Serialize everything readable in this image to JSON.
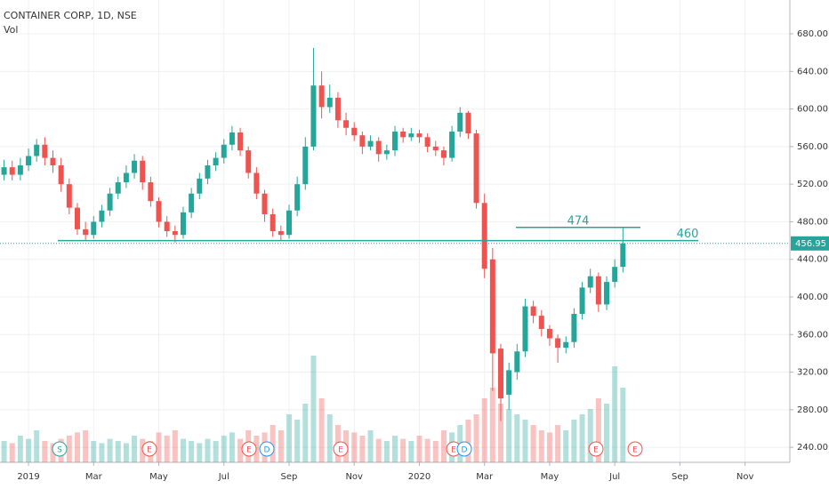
{
  "chart_data": {
    "type": "candlestick",
    "title": "CONTAINER CORP, 1D, NSE",
    "volume_label": "Vol",
    "categories": [
      null,
      null,
      null,
      "2019",
      null,
      null,
      null,
      null,
      null,
      null,
      null,
      "Mar",
      null,
      null,
      null,
      null,
      null,
      null,
      null,
      "May",
      null,
      null,
      null,
      null,
      null,
      null,
      null,
      "Jul",
      null,
      null,
      null,
      null,
      null,
      null,
      null,
      "Sep",
      null,
      null,
      null,
      null,
      null,
      null,
      null,
      "Nov",
      null,
      null,
      null,
      null,
      null,
      null,
      null,
      "2020",
      null,
      null,
      null,
      null,
      null,
      null,
      null,
      "Mar",
      null,
      null,
      null,
      null,
      null,
      null,
      null,
      "May",
      null,
      null,
      null,
      null,
      null,
      null,
      null,
      "Jul",
      null,
      null,
      null,
      null,
      null,
      null,
      null,
      "Sep",
      null,
      null,
      null,
      null,
      null,
      null,
      null,
      "Nov",
      null,
      null,
      null,
      null,
      null
    ],
    "open": [
      530,
      538,
      530,
      540,
      550,
      562,
      548,
      540,
      520,
      495,
      472,
      466,
      480,
      492,
      510,
      522,
      532,
      545,
      522,
      502,
      480,
      470,
      466,
      490,
      510,
      526,
      540,
      548,
      562,
      575,
      556,
      532,
      510,
      488,
      470,
      466,
      492,
      520,
      560,
      625,
      602,
      612,
      588,
      580,
      572,
      560,
      566,
      552,
      556,
      576,
      570,
      574,
      570,
      560,
      556,
      548,
      576,
      596,
      574,
      500,
      440,
      345,
      296,
      320,
      342,
      390,
      380,
      366,
      356,
      346,
      352,
      382,
      410,
      422,
      392,
      416,
      432,
      null,
      null,
      null,
      null,
      null,
      null,
      null,
      null,
      null,
      null,
      null,
      null,
      null,
      null,
      null,
      null,
      null,
      null,
      null,
      null
    ],
    "high": [
      546,
      545,
      548,
      558,
      568,
      570,
      556,
      548,
      526,
      500,
      480,
      486,
      498,
      516,
      528,
      540,
      552,
      550,
      528,
      506,
      486,
      476,
      496,
      516,
      532,
      546,
      554,
      568,
      582,
      580,
      560,
      538,
      514,
      494,
      476,
      498,
      528,
      570,
      665,
      640,
      626,
      618,
      596,
      586,
      576,
      572,
      570,
      562,
      582,
      580,
      580,
      578,
      574,
      566,
      560,
      582,
      602,
      598,
      578,
      510,
      452,
      350,
      330,
      350,
      398,
      396,
      386,
      370,
      360,
      358,
      388,
      416,
      430,
      426,
      422,
      440,
      474,
      null,
      null,
      null,
      null,
      null,
      null,
      null,
      null,
      null,
      null,
      null,
      null,
      null,
      null,
      null,
      null,
      null,
      null,
      null,
      null
    ],
    "low": [
      524,
      524,
      524,
      534,
      544,
      540,
      532,
      512,
      488,
      466,
      460,
      462,
      474,
      486,
      504,
      516,
      526,
      514,
      496,
      474,
      464,
      458,
      462,
      484,
      504,
      520,
      534,
      542,
      556,
      550,
      526,
      504,
      480,
      464,
      460,
      462,
      486,
      514,
      556,
      590,
      596,
      580,
      572,
      566,
      552,
      556,
      544,
      546,
      550,
      564,
      566,
      564,
      554,
      550,
      540,
      544,
      570,
      568,
      494,
      420,
      300,
      268,
      280,
      312,
      336,
      372,
      358,
      348,
      330,
      340,
      346,
      376,
      404,
      384,
      386,
      410,
      426,
      null,
      null,
      null,
      null,
      null,
      null,
      null,
      null,
      null,
      null,
      null,
      null,
      null,
      null,
      null,
      null,
      null,
      null,
      null,
      null
    ],
    "close": [
      538,
      530,
      540,
      550,
      562,
      548,
      540,
      520,
      495,
      472,
      466,
      480,
      492,
      510,
      522,
      532,
      545,
      522,
      502,
      480,
      470,
      466,
      490,
      510,
      526,
      540,
      548,
      562,
      575,
      556,
      532,
      510,
      488,
      470,
      466,
      492,
      520,
      560,
      625,
      602,
      612,
      588,
      580,
      572,
      560,
      566,
      552,
      556,
      576,
      570,
      574,
      570,
      560,
      556,
      548,
      576,
      596,
      574,
      500,
      430,
      340,
      292,
      322,
      342,
      390,
      380,
      366,
      356,
      346,
      352,
      382,
      410,
      422,
      392,
      416,
      432,
      456.95,
      null,
      null,
      null,
      null,
      null,
      null,
      null,
      null,
      null,
      null,
      null,
      null,
      null,
      null,
      null,
      null,
      null,
      null,
      null,
      null
    ],
    "volume": [
      20,
      18,
      25,
      22,
      30,
      20,
      18,
      22,
      25,
      28,
      30,
      20,
      18,
      22,
      20,
      18,
      25,
      22,
      20,
      28,
      25,
      30,
      22,
      20,
      18,
      22,
      20,
      25,
      28,
      22,
      30,
      25,
      28,
      35,
      30,
      45,
      40,
      55,
      100,
      60,
      45,
      35,
      30,
      28,
      25,
      30,
      22,
      20,
      25,
      22,
      20,
      25,
      22,
      20,
      30,
      28,
      35,
      40,
      45,
      60,
      70,
      55,
      50,
      45,
      40,
      35,
      30,
      28,
      35,
      30,
      40,
      45,
      50,
      60,
      55,
      90,
      70,
      null,
      null,
      null,
      null,
      null,
      null,
      null,
      null,
      null,
      null,
      null,
      null,
      null,
      null,
      null,
      null,
      null,
      null,
      null,
      null
    ],
    "vlim": [
      0,
      100
    ],
    "up_color": "#26a69a",
    "down_color": "#ef5350",
    "ylim": [
      224,
      716
    ],
    "yticks": [
      {
        "value": 240,
        "label": "240.00"
      },
      {
        "value": 280,
        "label": "280.00"
      },
      {
        "value": 320,
        "label": "320.00"
      },
      {
        "value": 360,
        "label": "360.00"
      },
      {
        "value": 400,
        "label": "400.00"
      },
      {
        "value": 440,
        "label": "440.00"
      },
      {
        "value": 480,
        "label": "480.00"
      },
      {
        "value": 520,
        "label": "520.00"
      },
      {
        "value": 560,
        "label": "560.00"
      },
      {
        "value": 600,
        "label": "600.00"
      },
      {
        "value": 640,
        "label": "640.00"
      },
      {
        "value": 680,
        "label": "680.00"
      }
    ],
    "grid": true,
    "levels": [
      474,
      460
    ],
    "level_color": "#26a69a",
    "last_price": 456.95,
    "events": [
      "S",
      "E",
      "E",
      "D",
      "E",
      "E",
      "D",
      "E",
      "E"
    ],
    "event_colors": {
      "S": "#26a69a",
      "E": "#ef5350",
      "D": "#2196f3"
    }
  }
}
